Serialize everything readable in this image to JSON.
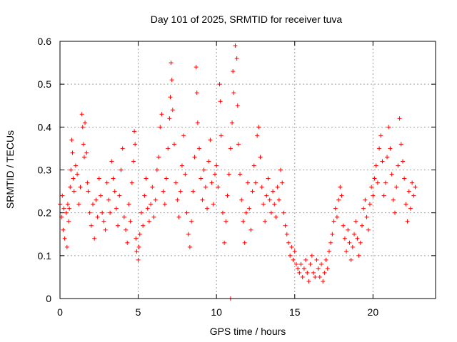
{
  "chart_data": {
    "type": "scatter",
    "title": "Day 101 of 2025, SRMTID for receiver tuva",
    "xlabel": "GPS time / hours",
    "ylabel": "SRMTID / TECUs",
    "xlim": [
      0,
      24
    ],
    "ylim": [
      0,
      0.6
    ],
    "xticks": [
      0,
      5,
      10,
      15,
      20
    ],
    "xtick_labels": [
      "0",
      "5",
      "10",
      "15",
      "20"
    ],
    "yticks": [
      0,
      0.1,
      0.2,
      0.3,
      0.4,
      0.5,
      0.6
    ],
    "ytick_labels": [
      "0",
      "0.1",
      "0.2",
      "0.3",
      "0.4",
      "0.5",
      "0.6"
    ],
    "grid": true,
    "marker": "+",
    "color": "#ff0000",
    "series": [
      {
        "name": "SRMTID",
        "points": [
          [
            0.0,
            0.22
          ],
          [
            0.1,
            0.19
          ],
          [
            0.15,
            0.24
          ],
          [
            0.2,
            0.16
          ],
          [
            0.25,
            0.21
          ],
          [
            0.3,
            0.14
          ],
          [
            0.4,
            0.2
          ],
          [
            0.45,
            0.12
          ],
          [
            0.5,
            0.22
          ],
          [
            0.55,
            0.18
          ],
          [
            0.6,
            0.21
          ],
          [
            0.65,
            0.26
          ],
          [
            0.7,
            0.3
          ],
          [
            0.75,
            0.37
          ],
          [
            0.8,
            0.34
          ],
          [
            0.85,
            0.28
          ],
          [
            0.9,
            0.25
          ],
          [
            1.0,
            0.31
          ],
          [
            1.1,
            0.29
          ],
          [
            1.2,
            0.22
          ],
          [
            1.3,
            0.26
          ],
          [
            1.4,
            0.43
          ],
          [
            1.45,
            0.4
          ],
          [
            1.5,
            0.36
          ],
          [
            1.55,
            0.33
          ],
          [
            1.6,
            0.41
          ],
          [
            1.7,
            0.34
          ],
          [
            1.75,
            0.27
          ],
          [
            1.8,
            0.25
          ],
          [
            1.9,
            0.2
          ],
          [
            2.0,
            0.17
          ],
          [
            2.1,
            0.22
          ],
          [
            2.2,
            0.14
          ],
          [
            2.3,
            0.23
          ],
          [
            2.4,
            0.19
          ],
          [
            2.5,
            0.28
          ],
          [
            2.6,
            0.24
          ],
          [
            2.7,
            0.2
          ],
          [
            2.8,
            0.18
          ],
          [
            2.9,
            0.16
          ],
          [
            3.0,
            0.27
          ],
          [
            3.1,
            0.23
          ],
          [
            3.2,
            0.2
          ],
          [
            3.3,
            0.32
          ],
          [
            3.4,
            0.28
          ],
          [
            3.5,
            0.25
          ],
          [
            3.6,
            0.21
          ],
          [
            3.7,
            0.17
          ],
          [
            3.8,
            0.24
          ],
          [
            3.9,
            0.3
          ],
          [
            4.0,
            0.35
          ],
          [
            4.1,
            0.19
          ],
          [
            4.2,
            0.16
          ],
          [
            4.3,
            0.13
          ],
          [
            4.4,
            0.22
          ],
          [
            4.5,
            0.18
          ],
          [
            4.6,
            0.27
          ],
          [
            4.7,
            0.32
          ],
          [
            4.75,
            0.39
          ],
          [
            4.8,
            0.36
          ],
          [
            4.85,
            0.14
          ],
          [
            4.9,
            0.11
          ],
          [
            5.0,
            0.09
          ],
          [
            5.05,
            0.12
          ],
          [
            5.1,
            0.15
          ],
          [
            5.2,
            0.2
          ],
          [
            5.3,
            0.17
          ],
          [
            5.4,
            0.24
          ],
          [
            5.5,
            0.28
          ],
          [
            5.6,
            0.21
          ],
          [
            5.7,
            0.18
          ],
          [
            5.8,
            0.22
          ],
          [
            5.9,
            0.26
          ],
          [
            6.0,
            0.19
          ],
          [
            6.1,
            0.23
          ],
          [
            6.2,
            0.3
          ],
          [
            6.3,
            0.33
          ],
          [
            6.4,
            0.4
          ],
          [
            6.5,
            0.43
          ],
          [
            6.6,
            0.25
          ],
          [
            6.7,
            0.22
          ],
          [
            6.8,
            0.28
          ],
          [
            6.9,
            0.35
          ],
          [
            7.0,
            0.42
          ],
          [
            7.05,
            0.47
          ],
          [
            7.1,
            0.55
          ],
          [
            7.15,
            0.51
          ],
          [
            7.2,
            0.44
          ],
          [
            7.3,
            0.36
          ],
          [
            7.4,
            0.27
          ],
          [
            7.5,
            0.23
          ],
          [
            7.6,
            0.19
          ],
          [
            7.7,
            0.25
          ],
          [
            7.8,
            0.31
          ],
          [
            7.9,
            0.38
          ],
          [
            8.0,
            0.29
          ],
          [
            8.1,
            0.2
          ],
          [
            8.2,
            0.15
          ],
          [
            8.3,
            0.12
          ],
          [
            8.4,
            0.18
          ],
          [
            8.5,
            0.25
          ],
          [
            8.6,
            0.33
          ],
          [
            8.7,
            0.54
          ],
          [
            8.75,
            0.48
          ],
          [
            8.8,
            0.41
          ],
          [
            8.9,
            0.35
          ],
          [
            9.0,
            0.28
          ],
          [
            9.1,
            0.23
          ],
          [
            9.2,
            0.3
          ],
          [
            9.3,
            0.26
          ],
          [
            9.4,
            0.21
          ],
          [
            9.5,
            0.32
          ],
          [
            9.6,
            0.37
          ],
          [
            9.7,
            0.27
          ],
          [
            9.8,
            0.22
          ],
          [
            9.9,
            0.29
          ],
          [
            10.0,
            0.31
          ],
          [
            10.1,
            0.26
          ],
          [
            10.2,
            0.5
          ],
          [
            10.25,
            0.46
          ],
          [
            10.3,
            0.38
          ],
          [
            10.4,
            0.2
          ],
          [
            10.5,
            0.13
          ],
          [
            10.6,
            0.18
          ],
          [
            10.7,
            0.24
          ],
          [
            10.8,
            0.29
          ],
          [
            10.9,
            0.35
          ],
          [
            11.0,
            0.41
          ],
          [
            11.05,
            0.53
          ],
          [
            11.1,
            0.48
          ],
          [
            11.2,
            0.59
          ],
          [
            11.3,
            0.56
          ],
          [
            11.35,
            0.45
          ],
          [
            11.4,
            0.36
          ],
          [
            11.5,
            0.29
          ],
          [
            11.6,
            0.23
          ],
          [
            11.7,
            0.18
          ],
          [
            11.8,
            0.13
          ],
          [
            11.9,
            0.2
          ],
          [
            12.0,
            0.27
          ],
          [
            12.1,
            0.21
          ],
          [
            12.2,
            0.16
          ],
          [
            12.3,
            0.25
          ],
          [
            12.4,
            0.31
          ],
          [
            12.5,
            0.27
          ],
          [
            12.6,
            0.38
          ],
          [
            12.7,
            0.4
          ],
          [
            12.8,
            0.33
          ],
          [
            12.9,
            0.26
          ],
          [
            13.0,
            0.22
          ],
          [
            13.1,
            0.18
          ],
          [
            13.2,
            0.24
          ],
          [
            13.3,
            0.28
          ],
          [
            13.4,
            0.23
          ],
          [
            13.5,
            0.2
          ],
          [
            13.6,
            0.25
          ],
          [
            13.7,
            0.22
          ],
          [
            13.8,
            0.19
          ],
          [
            13.9,
            0.26
          ],
          [
            14.0,
            0.23
          ],
          [
            14.1,
            0.3
          ],
          [
            14.2,
            0.27
          ],
          [
            14.3,
            0.2
          ],
          [
            14.4,
            0.17
          ],
          [
            14.5,
            0.15
          ],
          [
            14.6,
            0.13
          ],
          [
            14.7,
            0.1
          ],
          [
            14.8,
            0.12
          ],
          [
            14.9,
            0.09
          ],
          [
            15.0,
            0.11
          ],
          [
            15.1,
            0.08
          ],
          [
            15.2,
            0.07
          ],
          [
            15.3,
            0.06
          ],
          [
            15.4,
            0.08
          ],
          [
            15.5,
            0.05
          ],
          [
            15.6,
            0.07
          ],
          [
            15.7,
            0.09
          ],
          [
            15.8,
            0.06
          ],
          [
            15.9,
            0.04
          ],
          [
            16.0,
            0.08
          ],
          [
            16.1,
            0.1
          ],
          [
            16.2,
            0.06
          ],
          [
            16.3,
            0.05
          ],
          [
            16.4,
            0.09
          ],
          [
            16.5,
            0.07
          ],
          [
            16.6,
            0.05
          ],
          [
            16.7,
            0.08
          ],
          [
            16.8,
            0.04
          ],
          [
            16.9,
            0.06
          ],
          [
            17.0,
            0.09
          ],
          [
            17.1,
            0.07
          ],
          [
            17.2,
            0.11
          ],
          [
            17.3,
            0.13
          ],
          [
            17.4,
            0.15
          ],
          [
            17.5,
            0.18
          ],
          [
            17.6,
            0.21
          ],
          [
            17.7,
            0.19
          ],
          [
            17.8,
            0.23
          ],
          [
            17.9,
            0.26
          ],
          [
            18.0,
            0.24
          ],
          [
            18.1,
            0.17
          ],
          [
            18.2,
            0.14
          ],
          [
            18.3,
            0.11
          ],
          [
            18.4,
            0.16
          ],
          [
            18.5,
            0.13
          ],
          [
            18.6,
            0.09
          ],
          [
            18.7,
            0.12
          ],
          [
            18.8,
            0.15
          ],
          [
            18.9,
            0.18
          ],
          [
            19.0,
            0.14
          ],
          [
            19.1,
            0.1
          ],
          [
            19.2,
            0.13
          ],
          [
            19.3,
            0.17
          ],
          [
            19.4,
            0.21
          ],
          [
            19.5,
            0.23
          ],
          [
            19.6,
            0.19
          ],
          [
            19.7,
            0.16
          ],
          [
            19.8,
            0.22
          ],
          [
            19.9,
            0.26
          ],
          [
            20.0,
            0.24
          ],
          [
            20.1,
            0.28
          ],
          [
            20.2,
            0.31
          ],
          [
            20.3,
            0.27
          ],
          [
            20.4,
            0.35
          ],
          [
            20.5,
            0.38
          ],
          [
            20.6,
            0.32
          ],
          [
            20.7,
            0.24
          ],
          [
            20.8,
            0.27
          ],
          [
            20.9,
            0.33
          ],
          [
            21.0,
            0.4
          ],
          [
            21.1,
            0.35
          ],
          [
            21.2,
            0.29
          ],
          [
            21.3,
            0.23
          ],
          [
            21.4,
            0.2
          ],
          [
            21.5,
            0.26
          ],
          [
            21.6,
            0.31
          ],
          [
            21.7,
            0.42
          ],
          [
            21.8,
            0.36
          ],
          [
            21.9,
            0.32
          ],
          [
            22.0,
            0.28
          ],
          [
            22.1,
            0.22
          ],
          [
            22.2,
            0.18
          ],
          [
            22.3,
            0.25
          ],
          [
            22.4,
            0.21
          ],
          [
            22.5,
            0.27
          ],
          [
            22.6,
            0.24
          ],
          [
            22.7,
            0.26
          ],
          [
            10.9,
            0.0
          ]
        ]
      }
    ]
  }
}
